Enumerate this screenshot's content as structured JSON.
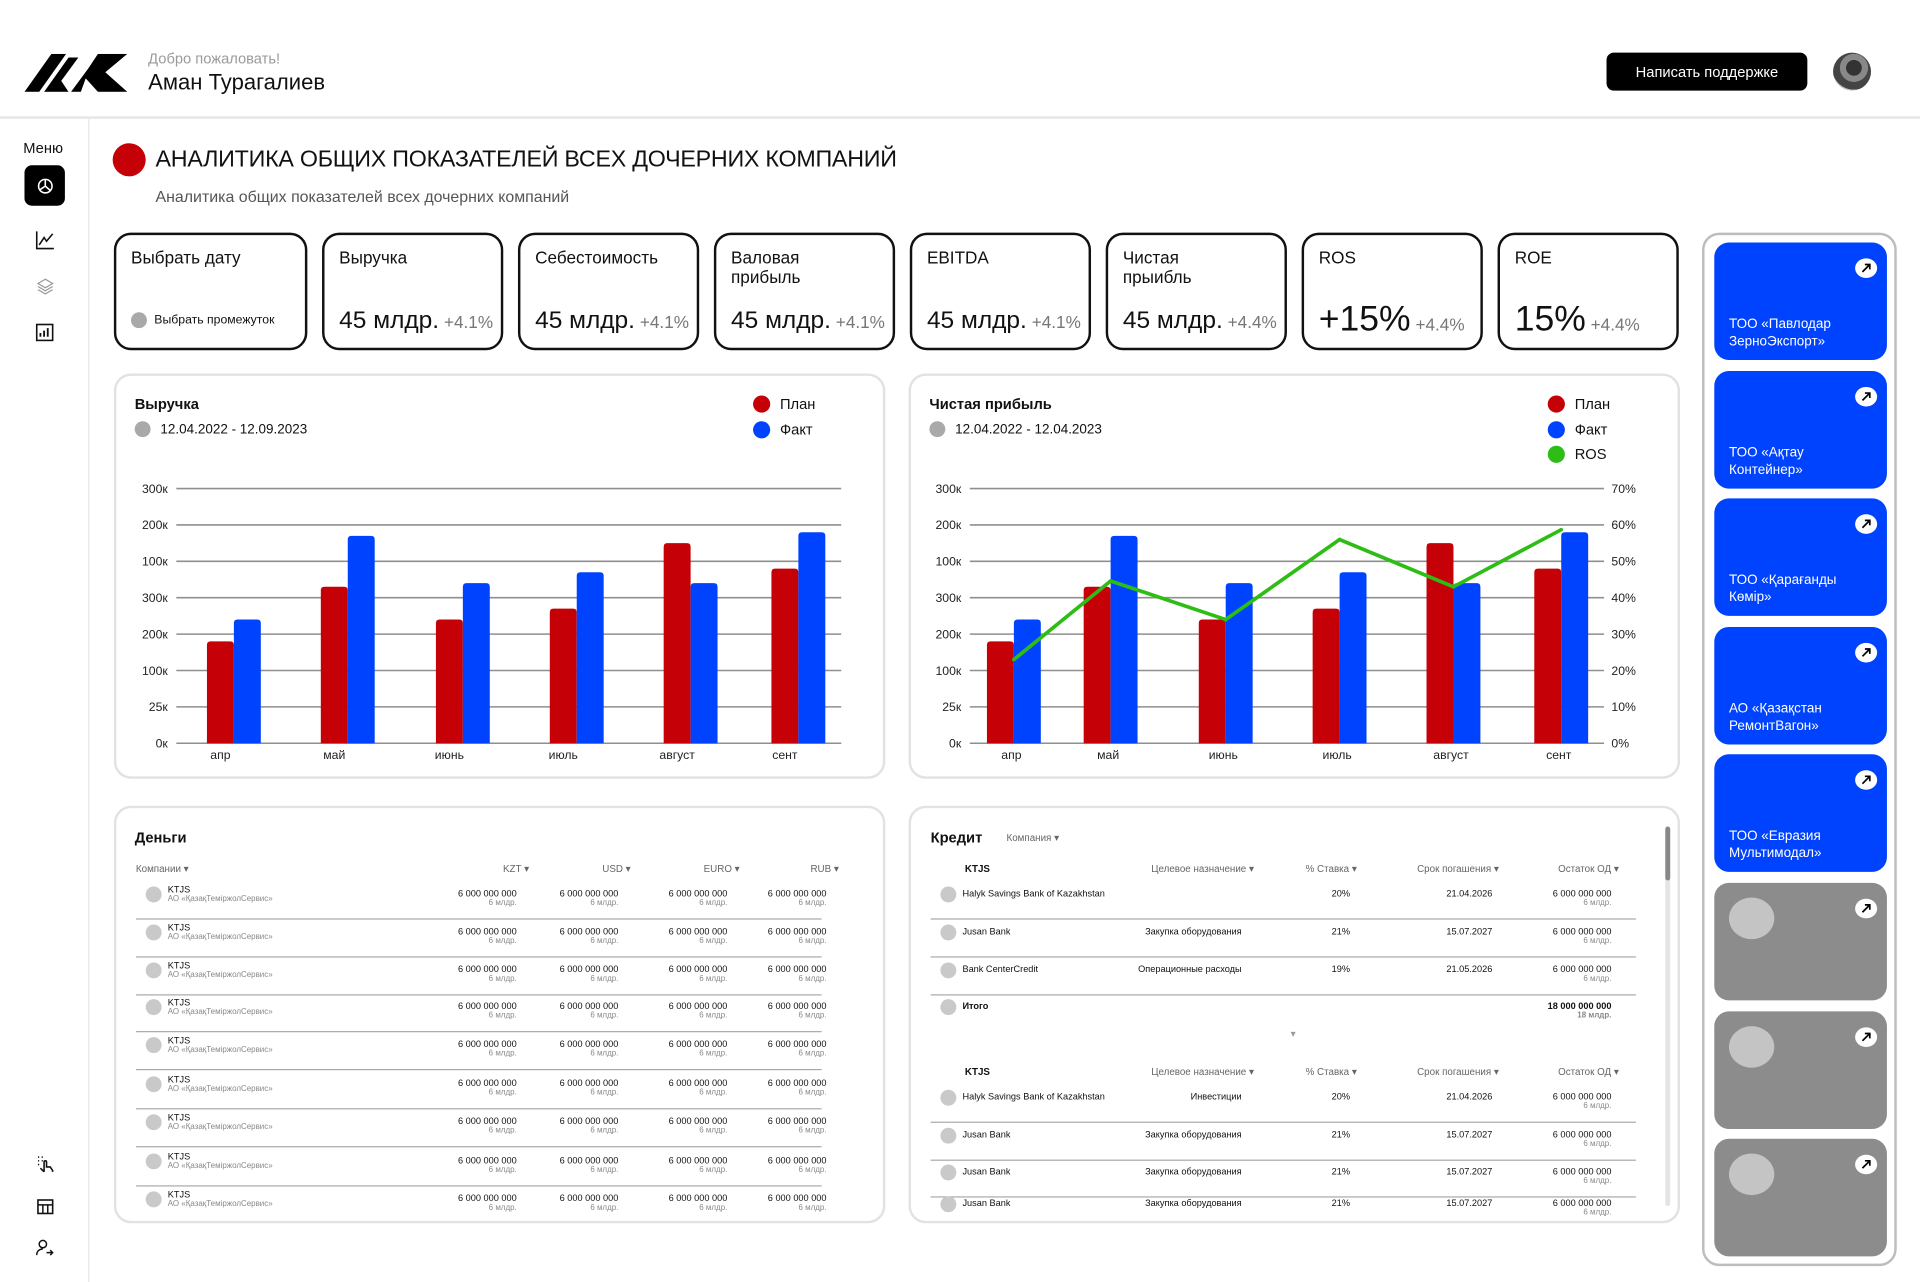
{
  "header": {
    "welcome": "Добро пожаловать!",
    "user_name": "Аман Турагалиев",
    "support_button": "Написать поддержке"
  },
  "sidebar": {
    "menu_label": "Меню",
    "items": [
      "dashboard-icon",
      "chart-line-icon",
      "layers-icon",
      "bar-report-icon"
    ],
    "bottom_items": [
      "touch-icon",
      "table-icon",
      "user-logout-icon"
    ]
  },
  "page": {
    "title": "АНАЛИТИКА ОБЩИХ ПОКАЗАТЕЛЕЙ ВСЕХ ДОЧЕРНИХ КОМПАНИЙ",
    "subtitle": "Аналитика общих показателей всех дочерних компаний",
    "accent": "#c50006"
  },
  "date_picker": {
    "title": "Выбрать дату",
    "range_label": "Выбрать промежуток"
  },
  "kpis": [
    {
      "title": "Выручка",
      "value": "45 млдр.",
      "delta": "+4.1%"
    },
    {
      "title": "Себестоимость",
      "value": "45 млдр.",
      "delta": "+4.1%"
    },
    {
      "title": "Валовая прибыль",
      "value": "45 млдр.",
      "delta": "+4.1%"
    },
    {
      "title": "EBITDA",
      "value": "45 млдр.",
      "delta": "+4.1%"
    },
    {
      "title": "Чистая прыибль",
      "value": "45 млдр.",
      "delta": "+4.4%"
    },
    {
      "title": "ROS",
      "value": "+15%",
      "delta": "+4.4%"
    },
    {
      "title": "ROE",
      "value": "15%",
      "delta": "+4.4%"
    }
  ],
  "chart_data": [
    {
      "type": "bar",
      "title": "Выручка",
      "date_range": "12.04.2022 - 12.09.2023",
      "categories": [
        "апр",
        "май",
        "июнь",
        "июль",
        "август",
        "сент"
      ],
      "y_ticks": [
        "0к",
        "25к",
        "100к",
        "200к",
        "300к",
        "100к",
        "200к",
        "300к"
      ],
      "ylim": [
        0,
        7
      ],
      "grid": true,
      "legend": "top-right",
      "series": [
        {
          "name": "План",
          "color": "#c50006",
          "values": [
            2.8,
            4.3,
            3.4,
            3.7,
            5.5,
            4.8
          ]
        },
        {
          "name": "Факт",
          "color": "#0043ff",
          "values": [
            3.4,
            5.7,
            4.4,
            4.7,
            4.4,
            5.8
          ]
        }
      ]
    },
    {
      "type": "bar",
      "title": "Чистая прибыль",
      "date_range": "12.04.2022 - 12.04.2023",
      "categories": [
        "апр",
        "май",
        "июнь",
        "июль",
        "август",
        "сент"
      ],
      "y_ticks": [
        "0к",
        "25к",
        "100к",
        "200к",
        "300к",
        "100к",
        "200к",
        "300к"
      ],
      "ylim": [
        0,
        7
      ],
      "y2_ticks": [
        "0%",
        "10%",
        "20%",
        "30%",
        "40%",
        "50%",
        "60%",
        "70%"
      ],
      "y2lim": [
        0,
        70
      ],
      "grid": true,
      "legend": "top-right",
      "series": [
        {
          "name": "План",
          "color": "#c50006",
          "values": [
            2.8,
            4.3,
            3.4,
            3.7,
            5.5,
            4.8
          ]
        },
        {
          "name": "Факт",
          "color": "#0043ff",
          "values": [
            3.4,
            5.7,
            4.4,
            4.7,
            4.4,
            5.8
          ]
        },
        {
          "name": "ROS",
          "color": "#2dbd14",
          "type": "line",
          "axis": "right",
          "values": [
            23,
            44.6,
            34,
            56,
            43,
            58.7
          ]
        }
      ]
    }
  ],
  "money": {
    "title": "Деньги",
    "headers": [
      "Компании",
      "KZT",
      "USD",
      "EURO",
      "RUB"
    ],
    "rows": [
      {
        "code": "KTJS",
        "name": "АО «ҚазақТеміржолСервис»",
        "values": [
          [
            "6 000 000 000",
            "6 млдр."
          ],
          [
            "6 000 000 000",
            "6 млдр."
          ],
          [
            "6 000 000 000",
            "6 млдр."
          ],
          [
            "6 000 000 000",
            "6 млдр."
          ]
        ]
      },
      {
        "code": "KTJS",
        "name": "АО «ҚазақТеміржолСервис»",
        "values": [
          [
            "6 000 000 000",
            "6 млдр."
          ],
          [
            "6 000 000 000",
            "6 млдр."
          ],
          [
            "6 000 000 000",
            "6 млдр."
          ],
          [
            "6 000 000 000",
            "6 млдр."
          ]
        ]
      },
      {
        "code": "KTJS",
        "name": "АО «ҚазақТеміржолСервис»",
        "values": [
          [
            "6 000 000 000",
            "6 млдр."
          ],
          [
            "6 000 000 000",
            "6 млдр."
          ],
          [
            "6 000 000 000",
            "6 млдр."
          ],
          [
            "6 000 000 000",
            "6 млдр."
          ]
        ]
      },
      {
        "code": "KTJS",
        "name": "АО «ҚазақТеміржолСервис»",
        "values": [
          [
            "6 000 000 000",
            "6 млдр."
          ],
          [
            "6 000 000 000",
            "6 млдр."
          ],
          [
            "6 000 000 000",
            "6 млдр."
          ],
          [
            "6 000 000 000",
            "6 млдр."
          ]
        ]
      },
      {
        "code": "KTJS",
        "name": "АО «ҚазақТеміржолСервис»",
        "values": [
          [
            "6 000 000 000",
            "6 млдр."
          ],
          [
            "6 000 000 000",
            "6 млдр."
          ],
          [
            "6 000 000 000",
            "6 млдр."
          ],
          [
            "6 000 000 000",
            "6 млдр."
          ]
        ]
      },
      {
        "code": "KTJS",
        "name": "АО «ҚазақТеміржолСервис»",
        "values": [
          [
            "6 000 000 000",
            "6 млдр."
          ],
          [
            "6 000 000 000",
            "6 млдр."
          ],
          [
            "6 000 000 000",
            "6 млдр."
          ],
          [
            "6 000 000 000",
            "6 млдр."
          ]
        ]
      },
      {
        "code": "KTJS",
        "name": "АО «ҚазақТеміржолСервис»",
        "values": [
          [
            "6 000 000 000",
            "6 млдр."
          ],
          [
            "6 000 000 000",
            "6 млдр."
          ],
          [
            "6 000 000 000",
            "6 млдр."
          ],
          [
            "6 000 000 000",
            "6 млдр."
          ]
        ]
      },
      {
        "code": "KTJS",
        "name": "АО «ҚазақТеміржолСервис»",
        "values": [
          [
            "6 000 000 000",
            "6 млдр."
          ],
          [
            "6 000 000 000",
            "6 млдр."
          ],
          [
            "6 000 000 000",
            "6 млдр."
          ],
          [
            "6 000 000 000",
            "6 млдр."
          ]
        ]
      },
      {
        "code": "KTJS",
        "name": "АО «ҚазақТеміржолСервис»",
        "values": [
          [
            "6 000 000 000",
            "6 млдр."
          ],
          [
            "6 000 000 000",
            "6 млдр."
          ],
          [
            "6 000 000 000",
            "6 млдр."
          ],
          [
            "6 000 000 000",
            "6 млдр."
          ]
        ]
      }
    ]
  },
  "credit": {
    "title": "Кредит",
    "company_filter": "Компания",
    "groups": [
      {
        "company": "KTJS",
        "headers": [
          "Целевое назначение",
          "% Ставка",
          "Срок погашения",
          "Остаток ОД"
        ],
        "rows": [
          {
            "bank": "Halyk Savings Bank of Kazakhstan",
            "purpose": "",
            "rate": "20%",
            "due": "21.04.2026",
            "amount": "6 000 000 000",
            "amount_short": "6 млдр."
          },
          {
            "bank": "Jusan Bank",
            "purpose": "Закупка оборудования",
            "rate": "21%",
            "due": "15.07.2027",
            "amount": "6 000 000 000",
            "amount_short": "6 млдр."
          },
          {
            "bank": "Bank CenterCredit",
            "purpose": "Операционные расходы",
            "rate": "19%",
            "due": "21.05.2026",
            "amount": "6 000 000 000",
            "amount_short": "6 млдр."
          },
          {
            "bank": "Итого",
            "purpose": "",
            "rate": "",
            "due": "",
            "amount": "18 000 000 000",
            "amount_short": "18 млдр.",
            "total": true
          }
        ]
      },
      {
        "company": "KTJS",
        "headers": [
          "Целевое назначение",
          "% Ставка",
          "Срок погашения",
          "Остаток ОД"
        ],
        "rows": [
          {
            "bank": "Halyk Savings Bank of Kazakhstan",
            "purpose": "Инвестиции",
            "rate": "20%",
            "due": "21.04.2026",
            "amount": "6 000 000 000",
            "amount_short": "6 млдр."
          },
          {
            "bank": "Jusan Bank",
            "purpose": "Закупка оборудования",
            "rate": "21%",
            "due": "15.07.2027",
            "amount": "6 000 000 000",
            "amount_short": "6 млдр."
          },
          {
            "bank": "Jusan Bank",
            "purpose": "Закупка оборудования",
            "rate": "21%",
            "due": "15.07.2027",
            "amount": "6 000 000 000",
            "amount_short": "6 млдр."
          },
          {
            "bank": "Jusan Bank",
            "purpose": "Закупка оборудования",
            "rate": "21%",
            "due": "15.07.2027",
            "amount": "6 000 000 000",
            "amount_short": "6 млдр."
          }
        ]
      }
    ]
  },
  "companies": [
    {
      "name": "ТОО «Павлодар ЗерноЭкспорт»",
      "color": "#0043ff"
    },
    {
      "name": "ТОО «Ақтау Контейнер»",
      "color": "#0043ff"
    },
    {
      "name": "ТОО «Қарағанды Көмір»",
      "color": "#0043ff"
    },
    {
      "name": "АО «Қазақстан РемонтВагон»",
      "color": "#0043ff"
    },
    {
      "name": "ТОО «Евразия Мультимодал»",
      "color": "#0043ff"
    },
    {
      "name": "",
      "color": "#8c8c8c"
    },
    {
      "name": "",
      "color": "#8c8c8c"
    },
    {
      "name": "",
      "color": "#8c8c8c"
    }
  ]
}
